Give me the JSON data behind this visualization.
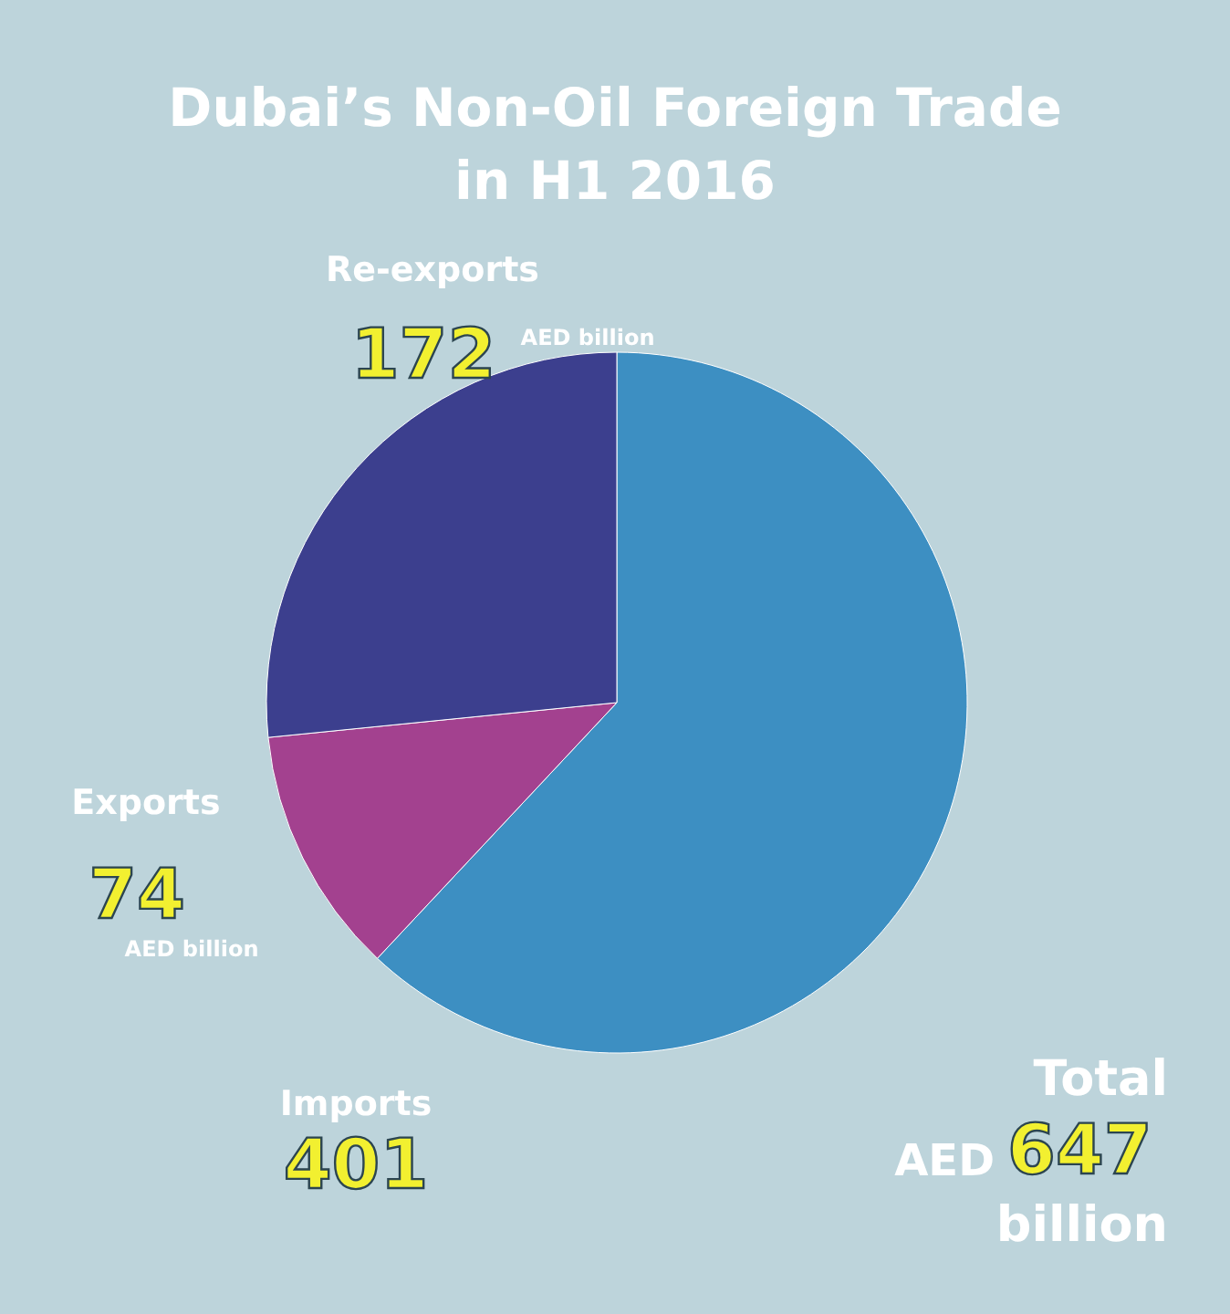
{
  "chart_data": {
    "type": "pie",
    "title": "Dubai’s Non-Oil Foreign Trade in H1 2016",
    "categories": [
      "Imports",
      "Exports",
      "Re-exports"
    ],
    "values": [
      401,
      74,
      172
    ],
    "colors": [
      "#3d8fc2",
      "#a3418f",
      "#3c3f8e"
    ],
    "data_labels": true,
    "annotations": [
      "AED billion",
      "AED billion",
      "Total",
      "AED",
      "647",
      "billion"
    ]
  }
}
